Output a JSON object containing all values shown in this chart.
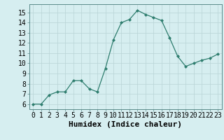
{
  "x": [
    0,
    1,
    2,
    3,
    4,
    5,
    6,
    7,
    8,
    9,
    10,
    11,
    12,
    13,
    14,
    15,
    16,
    17,
    18,
    19,
    20,
    21,
    22,
    23
  ],
  "y": [
    6.0,
    6.0,
    6.9,
    7.2,
    7.2,
    8.3,
    8.3,
    7.5,
    7.2,
    9.5,
    12.3,
    14.0,
    14.3,
    15.2,
    14.8,
    14.5,
    14.2,
    12.5,
    10.7,
    9.7,
    10.0,
    10.3,
    10.5,
    10.9
  ],
  "xlabel": "Humidex (Indice chaleur)",
  "ylim": [
    5.5,
    15.8
  ],
  "xlim": [
    -0.5,
    23.5
  ],
  "yticks": [
    6,
    7,
    8,
    9,
    10,
    11,
    12,
    13,
    14,
    15
  ],
  "xtick_labels": [
    "0",
    "1",
    "2",
    "3",
    "4",
    "5",
    "6",
    "7",
    "8",
    "9",
    "10",
    "11",
    "12",
    "13",
    "14",
    "15",
    "16",
    "17",
    "18",
    "19",
    "20",
    "21",
    "22",
    "23"
  ],
  "line_color": "#2e7d6e",
  "marker_color": "#2e7d6e",
  "bg_color": "#d6eef0",
  "grid_color": "#b8d4d6",
  "xlabel_fontsize": 8,
  "tick_fontsize": 7
}
